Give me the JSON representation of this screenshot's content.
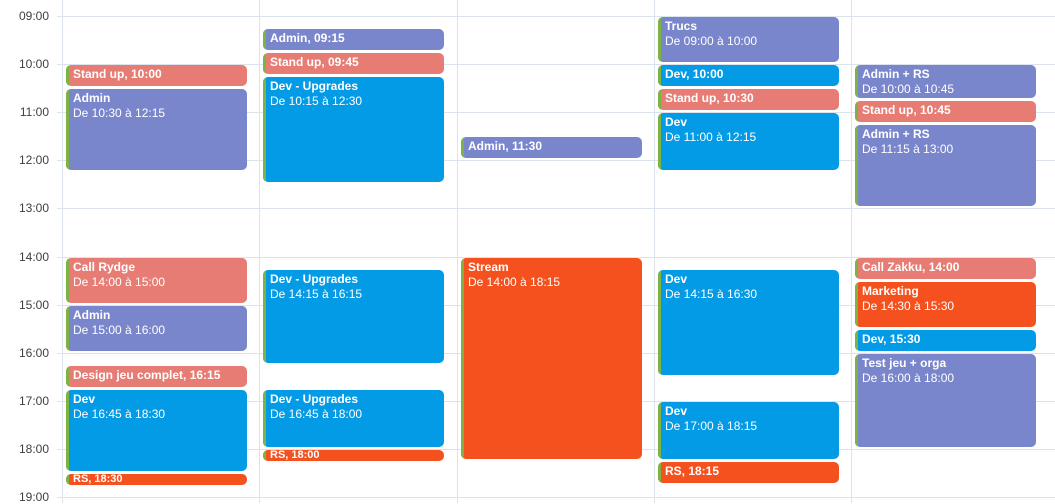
{
  "colors": {
    "stripe": "#7CB342",
    "red": "#E67C73",
    "purple": "#7986CB",
    "blue": "#039BE5",
    "orange": "#F4511E"
  },
  "time_labels": [
    "09:00",
    "10:00",
    "11:00",
    "12:00",
    "13:00",
    "14:00",
    "15:00",
    "16:00",
    "17:00",
    "18:00",
    "19:00"
  ],
  "days": [
    {
      "events": [
        {
          "title": "Stand up, 10:00",
          "start": "10:00",
          "end": "10:30",
          "color": "red"
        },
        {
          "title": "Admin",
          "subtitle": "De 10:30 à 12:15",
          "start": "10:30",
          "end": "12:15",
          "color": "purple"
        },
        {
          "title": "Call Rydge",
          "subtitle": "De 14:00 à 15:00",
          "start": "14:00",
          "end": "15:00",
          "color": "red"
        },
        {
          "title": "Admin",
          "subtitle": "De 15:00 à 16:00",
          "start": "15:00",
          "end": "16:00",
          "color": "purple"
        },
        {
          "title": "Design jeu complet, 16:15",
          "start": "16:15",
          "end": "16:45",
          "color": "red"
        },
        {
          "title": "Dev",
          "subtitle": "De 16:45 à 18:30",
          "start": "16:45",
          "end": "18:30",
          "color": "blue"
        },
        {
          "title": "RS, 18:30",
          "start": "18:30",
          "end": "18:45",
          "color": "orange"
        }
      ]
    },
    {
      "events": [
        {
          "title": "Admin, 09:15",
          "start": "09:15",
          "end": "09:45",
          "color": "purple"
        },
        {
          "title": "Stand up, 09:45",
          "start": "09:45",
          "end": "10:15",
          "color": "red"
        },
        {
          "title": "Dev - Upgrades",
          "subtitle": "De 10:15 à 12:30",
          "start": "10:15",
          "end": "12:30",
          "color": "blue"
        },
        {
          "title": "Dev - Upgrades",
          "subtitle": "De 14:15 à 16:15",
          "start": "14:15",
          "end": "16:15",
          "color": "blue"
        },
        {
          "title": "Dev - Upgrades",
          "subtitle": "De 16:45 à 18:00",
          "start": "16:45",
          "end": "18:00",
          "color": "blue"
        },
        {
          "title": "RS, 18:00",
          "start": "18:00",
          "end": "18:15",
          "color": "orange"
        }
      ]
    },
    {
      "events": [
        {
          "title": "Admin, 11:30",
          "start": "11:30",
          "end": "12:00",
          "color": "purple"
        },
        {
          "title": "Stream",
          "subtitle": "De 14:00 à 18:15",
          "start": "14:00",
          "end": "18:15",
          "color": "orange"
        }
      ]
    },
    {
      "events": [
        {
          "title": "Trucs",
          "subtitle": "De 09:00 à 10:00",
          "start": "09:00",
          "end": "10:00",
          "color": "purple"
        },
        {
          "title": "Dev, 10:00",
          "start": "10:00",
          "end": "10:30",
          "color": "blue"
        },
        {
          "title": "Stand up, 10:30",
          "start": "10:30",
          "end": "11:00",
          "color": "red"
        },
        {
          "title": "Dev",
          "subtitle": "De 11:00 à 12:15",
          "start": "11:00",
          "end": "12:15",
          "color": "blue"
        },
        {
          "title": "Dev",
          "subtitle": "De 14:15 à 16:30",
          "start": "14:15",
          "end": "16:30",
          "color": "blue"
        },
        {
          "title": "Dev",
          "subtitle": "De 17:00 à 18:15",
          "start": "17:00",
          "end": "18:15",
          "color": "blue"
        },
        {
          "title": "RS, 18:15",
          "start": "18:15",
          "end": "18:45",
          "color": "orange"
        }
      ]
    },
    {
      "events": [
        {
          "title": "Admin + RS",
          "subtitle": "De 10:00 à 10:45",
          "start": "10:00",
          "end": "10:45",
          "color": "purple"
        },
        {
          "title": "Stand up, 10:45",
          "start": "10:45",
          "end": "11:15",
          "color": "red"
        },
        {
          "title": "Admin + RS",
          "subtitle": "De 11:15 à 13:00",
          "start": "11:15",
          "end": "13:00",
          "color": "purple"
        },
        {
          "title": "Call Zakku, 14:00",
          "start": "14:00",
          "end": "14:30",
          "color": "red"
        },
        {
          "title": "Marketing",
          "subtitle": "De 14:30 à 15:30",
          "start": "14:30",
          "end": "15:30",
          "color": "orange"
        },
        {
          "title": "Dev, 15:30",
          "start": "15:30",
          "end": "16:00",
          "color": "blue"
        },
        {
          "title": "Test jeu + orga",
          "subtitle": "De 16:00 à 18:00",
          "start": "16:00",
          "end": "18:00",
          "color": "purple"
        }
      ]
    }
  ]
}
